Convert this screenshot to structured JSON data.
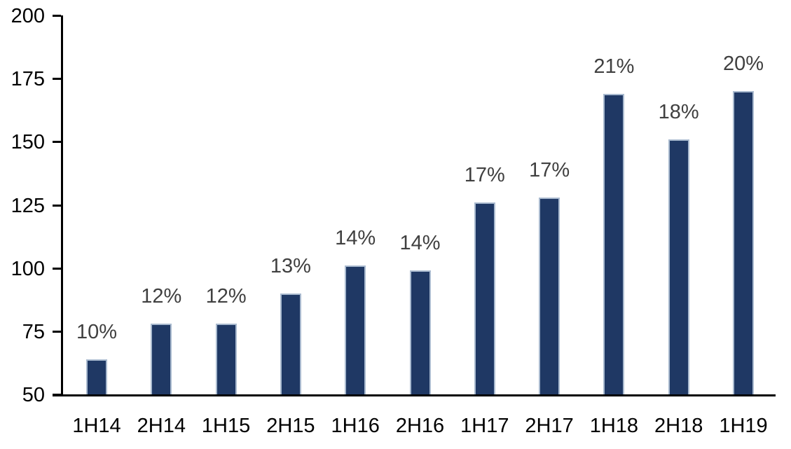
{
  "chart_data": {
    "type": "bar",
    "title": "",
    "xlabel": "",
    "ylabel": "",
    "categories": [
      "1H14",
      "2H14",
      "1H15",
      "2H15",
      "1H16",
      "2H16",
      "1H17",
      "2H17",
      "1H18",
      "2H18",
      "1H19"
    ],
    "values": [
      64,
      78,
      78,
      90,
      101,
      99,
      126,
      128,
      169,
      151,
      170
    ],
    "data_labels": [
      "10%",
      "12%",
      "12%",
      "13%",
      "14%",
      "14%",
      "17%",
      "17%",
      "21%",
      "18%",
      "20%"
    ],
    "ylim": [
      50,
      200
    ],
    "yticks": [
      50,
      75,
      100,
      125,
      150,
      175,
      200
    ],
    "grid": false,
    "legend": false,
    "colors": {
      "bar_fill": "#1F3864",
      "bar_border": "#A9BACF",
      "data_label": "#404040",
      "axis": "#000000",
      "background": "#FFFFFF"
    }
  }
}
